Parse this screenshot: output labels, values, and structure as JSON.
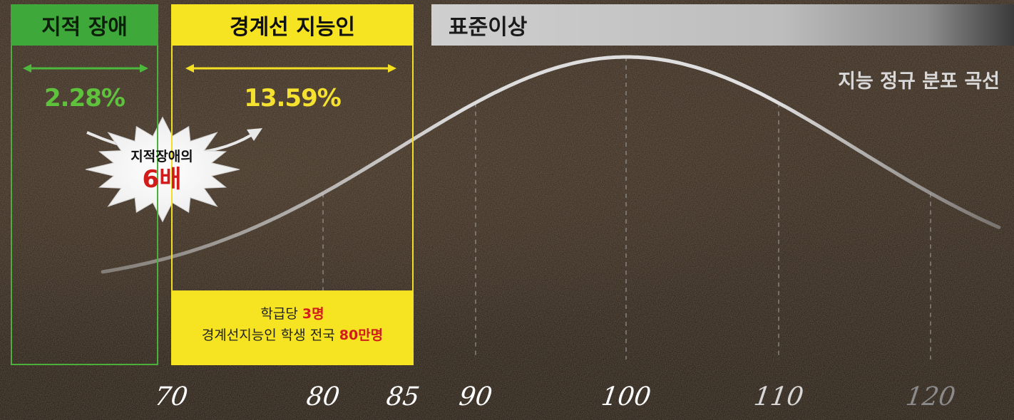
{
  "chart_data": {
    "type": "area",
    "title": "지능 정규 분포 곡선",
    "x_ticks": [
      "70",
      "80",
      "85",
      "90",
      "100",
      "110",
      "120"
    ],
    "x_values": [
      70,
      80,
      85,
      90,
      100,
      110,
      120
    ],
    "xlim": [
      66,
      125
    ],
    "distribution": {
      "shape": "normal",
      "mean": 100,
      "sd": 15
    },
    "regions": [
      {
        "label": "지적 장애",
        "range": [
          66,
          70
        ],
        "percent": "2.28%",
        "color": "#3ea83a"
      },
      {
        "label": "경계선 지능인",
        "range": [
          70,
          85
        ],
        "percent": "13.59%",
        "color": "#f6e321"
      },
      {
        "label": "표준이상",
        "range": [
          85,
          125
        ],
        "color": "#c4c4c4"
      }
    ],
    "gridlines_dashed_at": [
      80,
      90,
      100,
      110,
      120
    ]
  },
  "headers": {
    "intellectual": "지적 장애",
    "borderline": "경계선 지능인",
    "standard": "표준이상"
  },
  "percents": {
    "intellectual": "2.28%",
    "borderline": "13.59%"
  },
  "curve_title": "지능 정규 분포 곡선",
  "burst": {
    "line1": "지적장애의",
    "line2": "6배"
  },
  "note": {
    "l1_pre": "학급당 ",
    "l1_red": "3명",
    "l2_pre": "경계선지능인 학생 전국 ",
    "l2_red": "80만명"
  },
  "colors": {
    "green": "#3ea83a",
    "yellow": "#f6e321",
    "red": "#d21c1c",
    "curve": "#e6e6e6"
  }
}
